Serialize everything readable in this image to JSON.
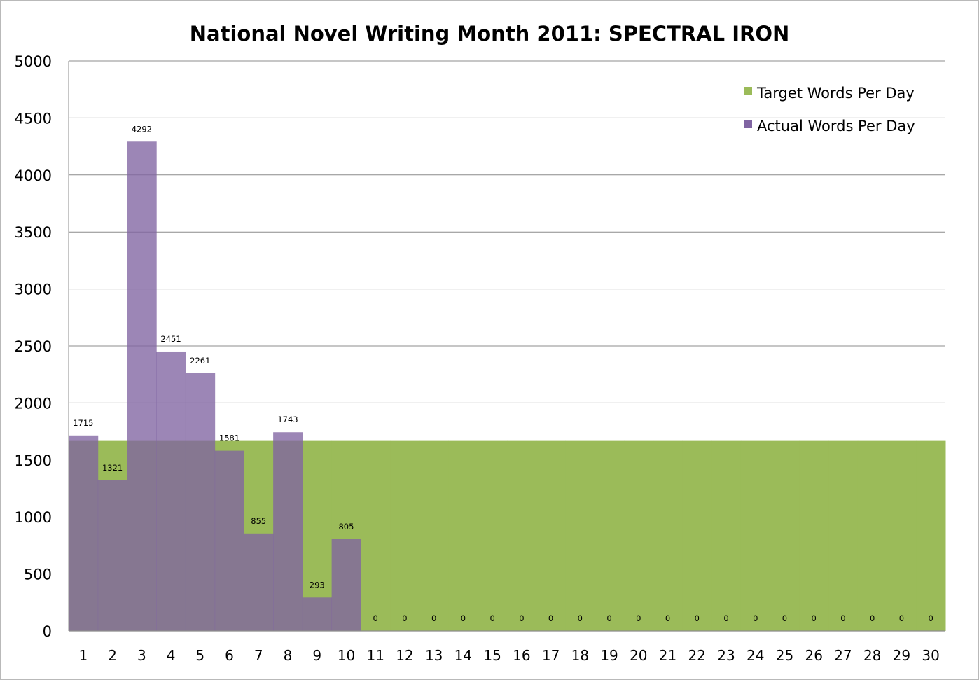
{
  "chart_data": {
    "type": "bar",
    "title": "National Novel Writing Month 2011: SPECTRAL IRON",
    "xlabel": "",
    "ylabel": "",
    "ylim": [
      0,
      5000
    ],
    "yticks": [
      "5000",
      "4500",
      "4000",
      "3500",
      "3000",
      "2500",
      "2000",
      "1500",
      "1000",
      "500",
      "0"
    ],
    "ytick_values": [
      5000,
      4500,
      4000,
      3500,
      3000,
      2500,
      2000,
      1500,
      1000,
      500,
      0
    ],
    "grid": true,
    "legend_position": "top-right",
    "categories": [
      "1",
      "2",
      "3",
      "4",
      "5",
      "6",
      "7",
      "8",
      "9",
      "10",
      "11",
      "12",
      "13",
      "14",
      "15",
      "16",
      "17",
      "18",
      "19",
      "20",
      "21",
      "22",
      "23",
      "24",
      "25",
      "26",
      "27",
      "28",
      "29",
      "30"
    ],
    "series": [
      {
        "name": "Target Words Per Day",
        "color": "#9bbb59",
        "values": [
          1667,
          1667,
          1667,
          1667,
          1667,
          1667,
          1667,
          1667,
          1667,
          1667,
          1667,
          1667,
          1667,
          1667,
          1667,
          1667,
          1667,
          1667,
          1667,
          1667,
          1667,
          1667,
          1667,
          1667,
          1667,
          1667,
          1667,
          1667,
          1667,
          1667
        ]
      },
      {
        "name": "Actual Words Per Day",
        "color": "#8064a2",
        "values": [
          1715,
          1321,
          4292,
          2451,
          2261,
          1581,
          855,
          1743,
          293,
          805,
          0,
          0,
          0,
          0,
          0,
          0,
          0,
          0,
          0,
          0,
          0,
          0,
          0,
          0,
          0,
          0,
          0,
          0,
          0,
          0
        ],
        "labels": [
          "1715",
          "1321",
          "4292",
          "2451",
          "2261",
          "1581",
          "855",
          "1743",
          "293",
          "805",
          "0",
          "0",
          "0",
          "0",
          "0",
          "0",
          "0",
          "0",
          "0",
          "0",
          "0",
          "0",
          "0",
          "0",
          "0",
          "0",
          "0",
          "0",
          "0",
          "0"
        ]
      }
    ]
  }
}
